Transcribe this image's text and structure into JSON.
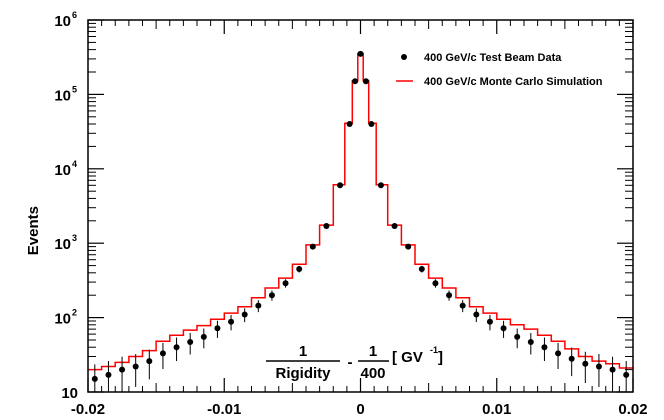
{
  "chart_data": {
    "type": "scatter",
    "ylabel": "Events",
    "xlabel_parts": {
      "num1": "1",
      "den1": "Rigidity",
      "minus": "-",
      "num2": "1",
      "den2": "400",
      "unit_open": "[ GV",
      "unit_sup": "-1",
      "unit_close": " ]"
    },
    "xlim": [
      -0.02,
      0.02
    ],
    "ylim": [
      10,
      1000000
    ],
    "yscale": "log",
    "x_ticks": [
      {
        "value": -0.02,
        "label": "-0.02"
      },
      {
        "value": -0.01,
        "label": "-0.01"
      },
      {
        "value": 0,
        "label": "0"
      },
      {
        "value": 0.01,
        "label": "0.01"
      },
      {
        "value": 0.02,
        "label": "0.02"
      }
    ],
    "y_ticks": [
      {
        "value": 10,
        "base": "10",
        "exp": ""
      },
      {
        "value": 100,
        "base": "10",
        "exp": "2"
      },
      {
        "value": 1000,
        "base": "10",
        "exp": "3"
      },
      {
        "value": 10000,
        "base": "10",
        "exp": "4"
      },
      {
        "value": 100000,
        "base": "10",
        "exp": "5"
      },
      {
        "value": 1000000,
        "base": "10",
        "exp": "6"
      }
    ],
    "grid": false,
    "legend_position": "top-right",
    "series": [
      {
        "name": "400 GeV/c Test Beam Data",
        "style": "points",
        "color": "#000000",
        "points": [
          [
            -0.0195,
            15
          ],
          [
            -0.0185,
            17
          ],
          [
            -0.0175,
            20
          ],
          [
            -0.0165,
            22
          ],
          [
            -0.0155,
            26
          ],
          [
            -0.0145,
            33
          ],
          [
            -0.0135,
            40
          ],
          [
            -0.0125,
            47
          ],
          [
            -0.0115,
            55
          ],
          [
            -0.0105,
            72
          ],
          [
            -0.0095,
            88
          ],
          [
            -0.0085,
            110
          ],
          [
            -0.0075,
            145
          ],
          [
            -0.0065,
            200
          ],
          [
            -0.0055,
            290
          ],
          [
            -0.0045,
            450
          ],
          [
            -0.0035,
            900
          ],
          [
            -0.0025,
            1700
          ],
          [
            -0.0015,
            6000
          ],
          [
            -0.0008,
            40000
          ],
          [
            -0.0004,
            150000
          ],
          [
            0,
            350000
          ],
          [
            0.0004,
            150000
          ],
          [
            0.0008,
            40000
          ],
          [
            0.0015,
            6000
          ],
          [
            0.0025,
            1700
          ],
          [
            0.0035,
            900
          ],
          [
            0.0045,
            450
          ],
          [
            0.0055,
            290
          ],
          [
            0.0065,
            200
          ],
          [
            0.0075,
            145
          ],
          [
            0.0085,
            110
          ],
          [
            0.0095,
            88
          ],
          [
            0.0105,
            72
          ],
          [
            0.0115,
            55
          ],
          [
            0.0125,
            47
          ],
          [
            0.0135,
            40
          ],
          [
            0.0145,
            33
          ],
          [
            0.0155,
            28
          ],
          [
            0.0165,
            24
          ],
          [
            0.0175,
            22
          ],
          [
            0.0185,
            20
          ],
          [
            0.0195,
            17
          ]
        ]
      },
      {
        "name": "400 GeV/c Monte Carlo Simulation",
        "style": "step",
        "color": "#ff0000",
        "points": [
          [
            -0.0195,
            20
          ],
          [
            -0.0185,
            22
          ],
          [
            -0.0175,
            25
          ],
          [
            -0.0165,
            30
          ],
          [
            -0.0155,
            36
          ],
          [
            -0.0145,
            48
          ],
          [
            -0.0135,
            58
          ],
          [
            -0.0125,
            68
          ],
          [
            -0.0115,
            78
          ],
          [
            -0.0105,
            95
          ],
          [
            -0.0095,
            115
          ],
          [
            -0.0085,
            140
          ],
          [
            -0.0075,
            185
          ],
          [
            -0.0065,
            250
          ],
          [
            -0.0055,
            340
          ],
          [
            -0.0045,
            520
          ],
          [
            -0.0035,
            950
          ],
          [
            -0.0025,
            1750
          ],
          [
            -0.0015,
            6100
          ],
          [
            -0.0008,
            41000
          ],
          [
            -0.0004,
            152000
          ],
          [
            0,
            355000
          ],
          [
            0.0004,
            152000
          ],
          [
            0.0008,
            41000
          ],
          [
            0.0015,
            6100
          ],
          [
            0.0025,
            1750
          ],
          [
            0.0035,
            950
          ],
          [
            0.0045,
            520
          ],
          [
            0.0055,
            340
          ],
          [
            0.0065,
            250
          ],
          [
            0.0075,
            185
          ],
          [
            0.0085,
            140
          ],
          [
            0.0095,
            115
          ],
          [
            0.0105,
            95
          ],
          [
            0.0115,
            80
          ],
          [
            0.0125,
            70
          ],
          [
            0.0135,
            58
          ],
          [
            0.0145,
            48
          ],
          [
            0.0155,
            38
          ],
          [
            0.0165,
            30
          ],
          [
            0.0175,
            26
          ],
          [
            0.0185,
            24
          ],
          [
            0.0195,
            21
          ]
        ]
      }
    ]
  }
}
